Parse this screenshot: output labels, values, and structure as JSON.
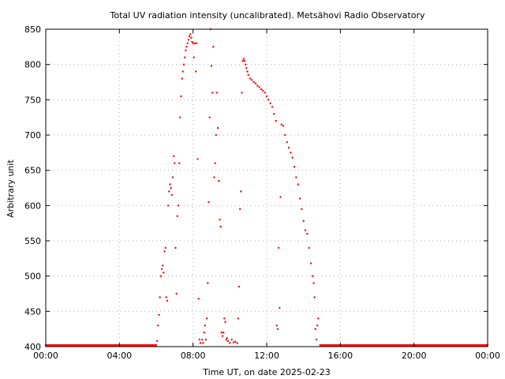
{
  "chart_data": {
    "type": "scatter",
    "title": "Total UV radiation intensity (uncalibrated). Metsähovi Radio Observatory",
    "xlabel": "Time UT, on date 2025-02-23",
    "ylabel": "Arbitrary unit",
    "xlim": [
      0,
      24
    ],
    "ylim": [
      400,
      850
    ],
    "x_ticks": [
      {
        "value": 0,
        "label": "00:00"
      },
      {
        "value": 4,
        "label": "04:00"
      },
      {
        "value": 8,
        "label": "08:00"
      },
      {
        "value": 12,
        "label": "12:00"
      },
      {
        "value": 16,
        "label": "16:00"
      },
      {
        "value": 20,
        "label": "20:00"
      },
      {
        "value": 24,
        "label": "00:00"
      }
    ],
    "y_ticks": [
      400,
      450,
      500,
      550,
      600,
      650,
      700,
      750,
      800,
      850
    ],
    "grid": true,
    "series": [
      {
        "color": "#ff0000",
        "points": [
          [
            0.0,
            402
          ],
          [
            0.5,
            402
          ],
          [
            1.0,
            402
          ],
          [
            1.5,
            402
          ],
          [
            2.0,
            402
          ],
          [
            2.5,
            402
          ],
          [
            3.0,
            402
          ],
          [
            3.5,
            402
          ],
          [
            4.0,
            402
          ],
          [
            4.5,
            402
          ],
          [
            5.0,
            402
          ],
          [
            5.5,
            402
          ],
          [
            6.0,
            402
          ],
          [
            6.05,
            408
          ],
          [
            6.1,
            430
          ],
          [
            6.15,
            445
          ],
          [
            6.2,
            470
          ],
          [
            6.25,
            500
          ],
          [
            6.3,
            510
          ],
          [
            6.35,
            515
          ],
          [
            6.4,
            505
          ],
          [
            6.45,
            535
          ],
          [
            6.5,
            540
          ],
          [
            6.55,
            470
          ],
          [
            6.6,
            465
          ],
          [
            6.65,
            600
          ],
          [
            6.7,
            620
          ],
          [
            6.75,
            630
          ],
          [
            6.8,
            625
          ],
          [
            6.85,
            615
          ],
          [
            6.9,
            640
          ],
          [
            6.95,
            670
          ],
          [
            7.0,
            660
          ],
          [
            7.05,
            540
          ],
          [
            7.1,
            475
          ],
          [
            7.15,
            585
          ],
          [
            7.2,
            600
          ],
          [
            7.25,
            660
          ],
          [
            7.3,
            725
          ],
          [
            7.35,
            755
          ],
          [
            7.4,
            780
          ],
          [
            7.45,
            790
          ],
          [
            7.5,
            800
          ],
          [
            7.55,
            810
          ],
          [
            7.6,
            820
          ],
          [
            7.65,
            825
          ],
          [
            7.7,
            830
          ],
          [
            7.75,
            835
          ],
          [
            7.8,
            840
          ],
          [
            7.85,
            843
          ],
          [
            7.9,
            838
          ],
          [
            7.95,
            832
          ],
          [
            8.0,
            830
          ],
          [
            8.05,
            810
          ],
          [
            8.1,
            830
          ],
          [
            8.15,
            790
          ],
          [
            8.2,
            830
          ],
          [
            8.25,
            666
          ],
          [
            8.3,
            468
          ],
          [
            8.35,
            410
          ],
          [
            8.4,
            405
          ],
          [
            8.5,
            410
          ],
          [
            8.55,
            405
          ],
          [
            8.6,
            420
          ],
          [
            8.65,
            430
          ],
          [
            8.7,
            410
          ],
          [
            8.75,
            440
          ],
          [
            8.8,
            490
          ],
          [
            8.85,
            605
          ],
          [
            8.9,
            725
          ],
          [
            8.95,
            850
          ],
          [
            9.0,
            798
          ],
          [
            9.05,
            760
          ],
          [
            9.1,
            825
          ],
          [
            9.15,
            640
          ],
          [
            9.2,
            660
          ],
          [
            9.25,
            700
          ],
          [
            9.3,
            760
          ],
          [
            9.35,
            710
          ],
          [
            9.4,
            635
          ],
          [
            9.45,
            580
          ],
          [
            9.5,
            570
          ],
          [
            9.55,
            420
          ],
          [
            9.6,
            415
          ],
          [
            9.65,
            420
          ],
          [
            9.7,
            440
          ],
          [
            9.75,
            435
          ],
          [
            9.8,
            410
          ],
          [
            9.85,
            412
          ],
          [
            9.9,
            408
          ],
          [
            10.0,
            405
          ],
          [
            10.1,
            410
          ],
          [
            10.2,
            406
          ],
          [
            10.3,
            407
          ],
          [
            10.4,
            405
          ],
          [
            10.45,
            440
          ],
          [
            10.5,
            485
          ],
          [
            10.55,
            595
          ],
          [
            10.6,
            620
          ],
          [
            10.65,
            760
          ],
          [
            10.7,
            805
          ],
          [
            10.75,
            808
          ],
          [
            10.8,
            805
          ],
          [
            10.85,
            800
          ],
          [
            10.9,
            795
          ],
          [
            10.95,
            790
          ],
          [
            11.0,
            785
          ],
          [
            11.1,
            780
          ],
          [
            11.2,
            778
          ],
          [
            11.3,
            775
          ],
          [
            11.4,
            773
          ],
          [
            11.5,
            770
          ],
          [
            11.6,
            768
          ],
          [
            11.7,
            765
          ],
          [
            11.8,
            763
          ],
          [
            11.9,
            760
          ],
          [
            12.0,
            755
          ],
          [
            12.1,
            750
          ],
          [
            12.2,
            745
          ],
          [
            12.3,
            740
          ],
          [
            12.4,
            730
          ],
          [
            12.5,
            720
          ],
          [
            12.55,
            430
          ],
          [
            12.6,
            425
          ],
          [
            12.65,
            540
          ],
          [
            12.7,
            455
          ],
          [
            12.75,
            612
          ],
          [
            12.8,
            715
          ],
          [
            12.9,
            713
          ],
          [
            13.0,
            700
          ],
          [
            13.1,
            690
          ],
          [
            13.2,
            682
          ],
          [
            13.3,
            675
          ],
          [
            13.4,
            668
          ],
          [
            13.5,
            655
          ],
          [
            13.6,
            640
          ],
          [
            13.7,
            630
          ],
          [
            13.8,
            610
          ],
          [
            13.9,
            595
          ],
          [
            14.0,
            578
          ],
          [
            14.1,
            565
          ],
          [
            14.2,
            560
          ],
          [
            14.3,
            540
          ],
          [
            14.4,
            518
          ],
          [
            14.5,
            500
          ],
          [
            14.55,
            490
          ],
          [
            14.6,
            470
          ],
          [
            14.65,
            425
          ],
          [
            14.7,
            410
          ],
          [
            14.75,
            430
          ],
          [
            14.8,
            440
          ],
          [
            14.9,
            402
          ],
          [
            15.0,
            402
          ],
          [
            15.5,
            402
          ],
          [
            16.0,
            402
          ],
          [
            16.5,
            402
          ],
          [
            17.0,
            402
          ],
          [
            17.5,
            402
          ],
          [
            18.0,
            402
          ],
          [
            18.5,
            402
          ],
          [
            19.0,
            402
          ],
          [
            19.5,
            402
          ],
          [
            20.0,
            402
          ],
          [
            20.5,
            402
          ],
          [
            21.0,
            402
          ],
          [
            21.5,
            402
          ],
          [
            22.0,
            402
          ],
          [
            22.5,
            402
          ],
          [
            23.0,
            402
          ],
          [
            23.5,
            402
          ],
          [
            24.0,
            402
          ]
        ]
      }
    ]
  }
}
